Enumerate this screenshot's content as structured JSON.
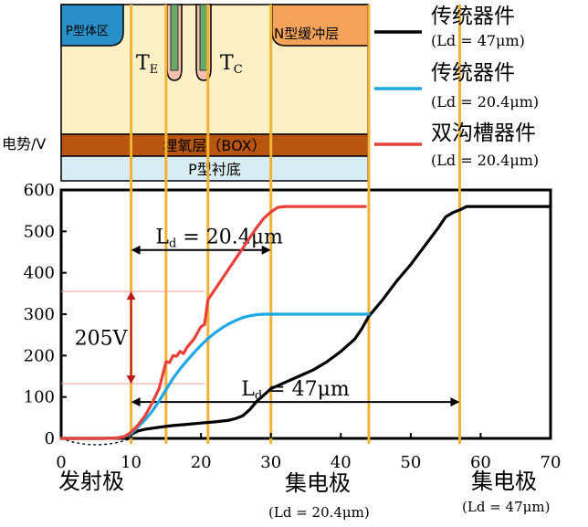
{
  "chart_data": {
    "type": "line",
    "xlim": [
      0,
      70
    ],
    "ylim": [
      0,
      600
    ],
    "x_ticks": [
      0,
      10,
      20,
      30,
      40,
      50,
      60,
      70
    ],
    "y_ticks": [
      0,
      100,
      200,
      300,
      400,
      500,
      600
    ],
    "ylabel": "电势/V",
    "grid": false,
    "legend_position": "top-right",
    "legend": [
      {
        "name": "传统器件",
        "sub": "(Ld = 47μm)",
        "color": "#000000"
      },
      {
        "name": "传统器件",
        "sub": "(Ld = 20.4μm)",
        "color": "#1ea8e6"
      },
      {
        "name": "双沟槽器件",
        "sub": "(Ld = 20.4μm)",
        "color": "#e8413a"
      }
    ],
    "series": [
      {
        "color": "#000000",
        "x": [
          0,
          6,
          8,
          9,
          10,
          10.5,
          11,
          12,
          14,
          16,
          18,
          20,
          22,
          24,
          25,
          26,
          27,
          28,
          29,
          30,
          32,
          34,
          36,
          38,
          40,
          42,
          43,
          44,
          46,
          48,
          50,
          52,
          54,
          55,
          56,
          57,
          58,
          60,
          62,
          65,
          68,
          70
        ],
        "y": [
          0,
          0,
          1,
          4,
          10,
          14,
          18,
          22,
          27,
          31,
          34,
          37,
          40,
          44,
          48,
          55,
          70,
          90,
          105,
          120,
          135,
          150,
          165,
          185,
          210,
          240,
          265,
          295,
          335,
          380,
          420,
          465,
          510,
          535,
          545,
          552,
          560,
          560,
          560,
          560,
          560,
          560
        ]
      },
      {
        "color": "#1ea8e6",
        "x": [
          0,
          6,
          8,
          9,
          10,
          11,
          12,
          13,
          14,
          15,
          16,
          17,
          18,
          19,
          20,
          21,
          22,
          23,
          24,
          25,
          26,
          27,
          28,
          29,
          30,
          32,
          35,
          38,
          40,
          42,
          44
        ],
        "y": [
          0,
          0,
          1,
          4,
          12,
          28,
          45,
          65,
          90,
          118,
          145,
          168,
          188,
          207,
          225,
          241,
          255,
          267,
          277,
          285,
          292,
          296,
          299,
          300,
          300,
          300,
          300,
          300,
          300,
          300,
          300
        ]
      },
      {
        "color": "#e8413a",
        "x": [
          0,
          6,
          8,
          9,
          10,
          11,
          12,
          13,
          14,
          15,
          15.5,
          16,
          16.5,
          17,
          17.5,
          18,
          18.5,
          19,
          19.5,
          20,
          20.5,
          21,
          22,
          23,
          24,
          25,
          26,
          27,
          28,
          29,
          30,
          31,
          32,
          34,
          36,
          38,
          40,
          42,
          43.5
        ],
        "y": [
          0,
          0,
          1,
          4,
          15,
          32,
          55,
          85,
          120,
          185,
          183,
          200,
          198,
          210,
          205,
          220,
          230,
          240,
          255,
          270,
          275,
          335,
          360,
          385,
          410,
          435,
          460,
          485,
          510,
          532,
          547,
          558,
          560,
          560,
          560,
          560,
          560,
          560,
          560
        ]
      }
    ],
    "vlines_x": [
      10,
      15,
      21,
      30,
      44,
      57
    ],
    "annotations": [
      {
        "text": "205V",
        "x": 10,
        "y_from": 132,
        "y_to": 355
      },
      {
        "text": "Ld = 20.4μm",
        "x_from": 10,
        "x_to": 30,
        "y": 455
      },
      {
        "text": "Ld = 47μm",
        "x_from": 10,
        "x_to": 57,
        "y": 88
      }
    ]
  },
  "device": {
    "p_body": "P型体区",
    "n_buffer": "N型缓冲层",
    "box": "埋氧层（BOX）",
    "substrate": "P型衬底",
    "te": "T",
    "te_sub": "E",
    "tc": "T",
    "tc_sub": "C"
  },
  "labels": {
    "emitter": "发射极",
    "collector1": "集电极",
    "collector1_sub": "(Ld = 20.4μm)",
    "collector2": "集电极",
    "collector2_sub": "(Ld = 47μm)"
  }
}
